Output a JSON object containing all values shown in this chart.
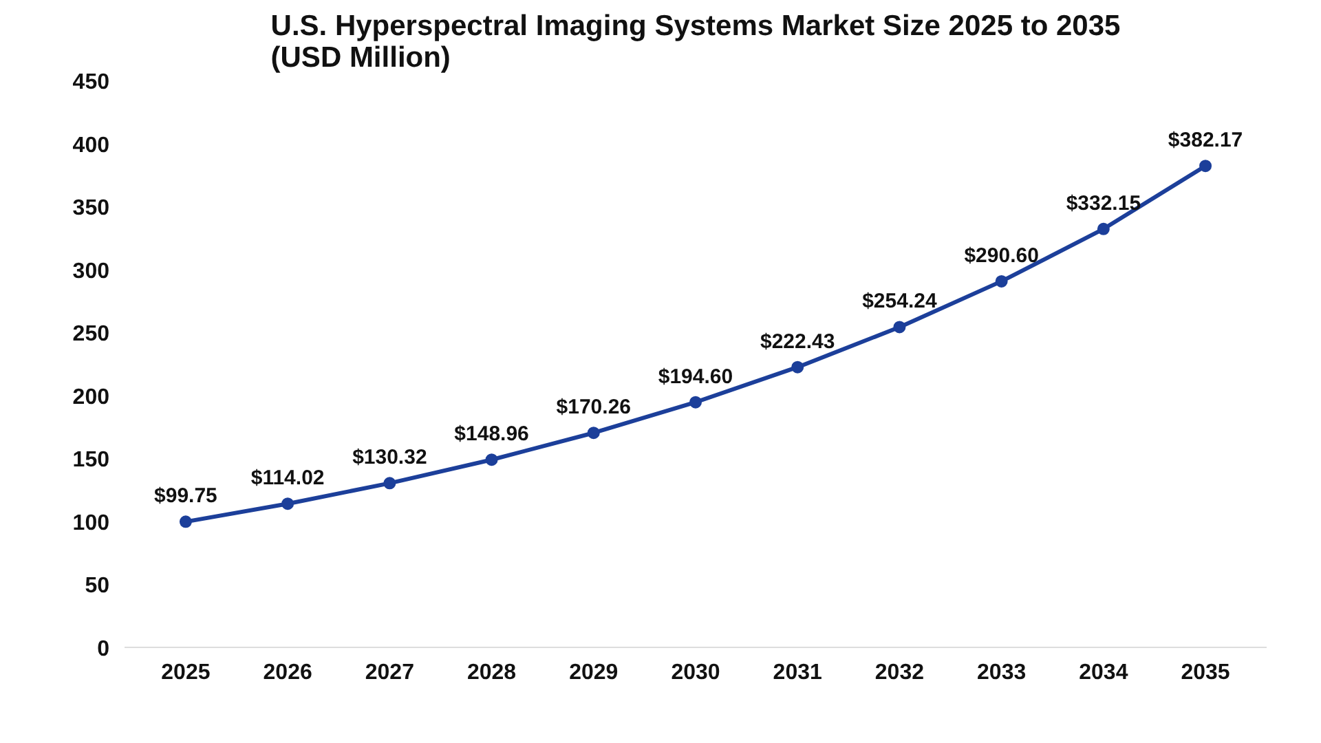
{
  "chart_data": {
    "type": "line",
    "title": "U.S. Hyperspectral Imaging Systems Market Size 2025 to 2035\n(USD Million)",
    "categories": [
      "2025",
      "2026",
      "2027",
      "2028",
      "2029",
      "2030",
      "2031",
      "2032",
      "2033",
      "2034",
      "2035"
    ],
    "series": [
      {
        "color": "#1c3f9a",
        "values": [
          99.75,
          114.02,
          130.32,
          148.96,
          170.26,
          194.6,
          222.43,
          254.24,
          290.6,
          332.15,
          382.17
        ],
        "value_labels": [
          "$99.75",
          "$114.02",
          "$130.32",
          "$148.96",
          "$170.26",
          "$194.60",
          "$222.43",
          "$254.24",
          "$290.60",
          "$332.15",
          "$382.17"
        ]
      }
    ],
    "ylim": [
      0,
      450
    ],
    "yticks": [
      0,
      50,
      100,
      150,
      200,
      250,
      300,
      350,
      400,
      450
    ],
    "grid": false,
    "marker": "circle",
    "line_style": "solid"
  }
}
